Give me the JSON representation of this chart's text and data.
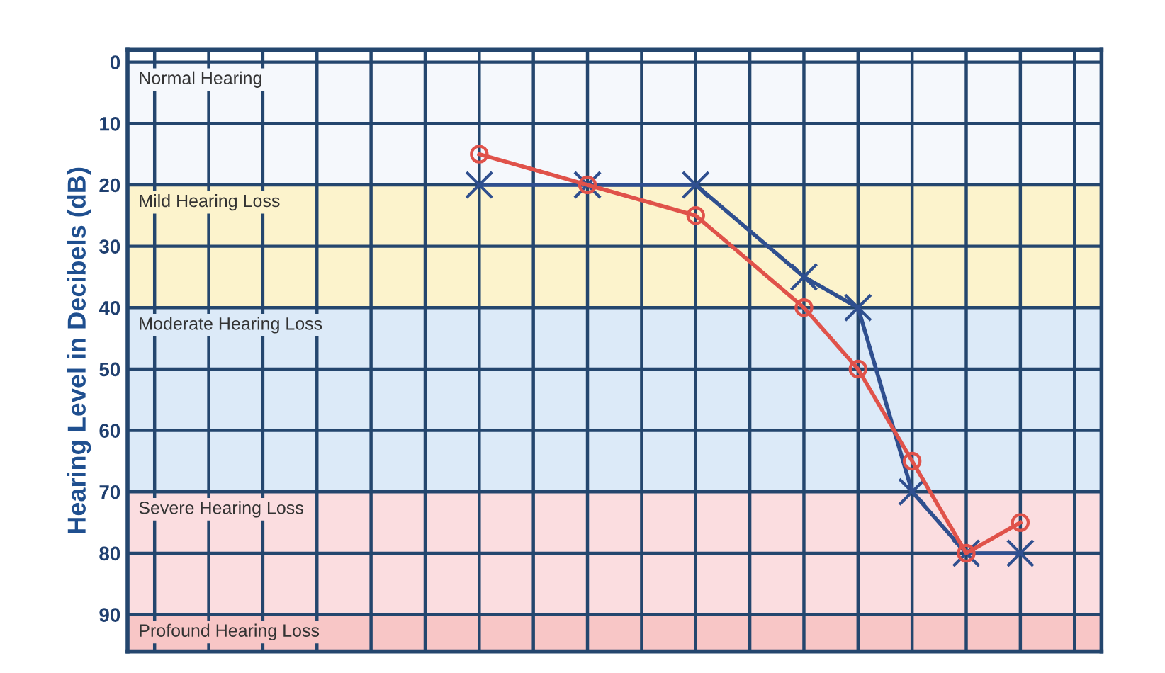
{
  "chart_data": {
    "type": "line",
    "ylabel": "Hearing Level in Decibels (dB)",
    "categories": [
      null,
      null,
      null,
      null,
      null,
      null,
      null,
      null,
      null,
      null,
      null,
      null,
      null,
      null,
      null,
      null,
      null,
      null
    ],
    "series": [
      {
        "color": "#2f4f8f",
        "marker": "cross",
        "values": [
          null,
          null,
          null,
          null,
          null,
          null,
          20,
          null,
          20,
          null,
          20,
          null,
          35,
          40,
          70,
          80,
          80,
          null
        ]
      },
      {
        "color": "#e0524a",
        "marker": "circle",
        "values": [
          null,
          null,
          null,
          null,
          null,
          null,
          15,
          null,
          20,
          null,
          25,
          null,
          40,
          50,
          65,
          80,
          75,
          null
        ]
      }
    ],
    "ylim": [
      96,
      -2
    ],
    "yticks": [
      0,
      10,
      20,
      30,
      40,
      50,
      60,
      70,
      80,
      90
    ],
    "tick_labels": "y",
    "grid": true,
    "bands": [
      {
        "axis": "y",
        "from": 0,
        "to": 20,
        "label": "Normal Hearing",
        "color": "#f5f8fc"
      },
      {
        "axis": "y",
        "from": 20,
        "to": 40,
        "label": "Mild Hearing Loss",
        "color": "#fcf3cc"
      },
      {
        "axis": "y",
        "from": 40,
        "to": 70,
        "label": "Moderate Hearing Loss",
        "color": "#dceaf8"
      },
      {
        "axis": "y",
        "from": 70,
        "to": 90,
        "label": "Severe Hearing Loss",
        "color": "#fbdde0"
      },
      {
        "axis": "y",
        "from": 90,
        "to": 96,
        "label": "Profound Hearing Loss",
        "color": "#f8c6c6"
      }
    ]
  }
}
